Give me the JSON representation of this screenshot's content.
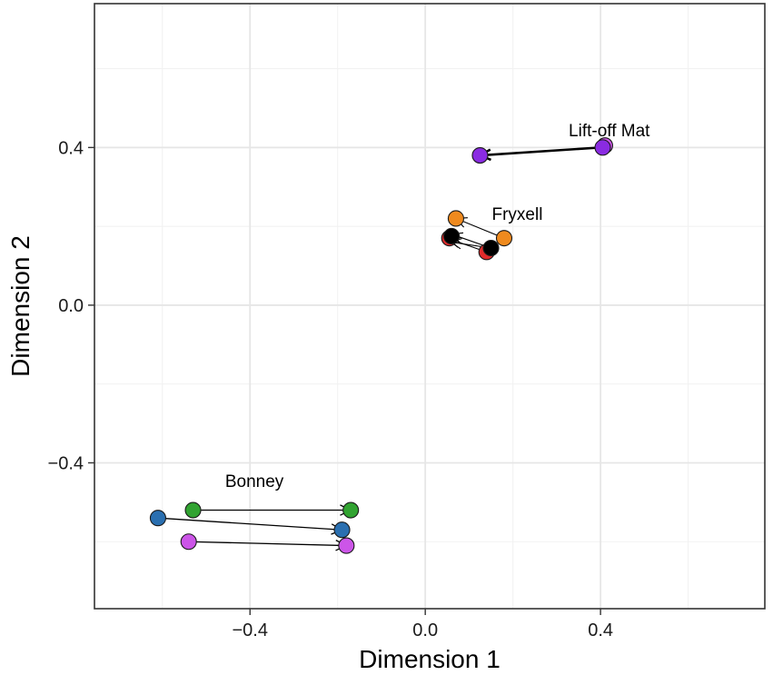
{
  "chart_data": {
    "type": "scatter",
    "title": "",
    "xlabel": "Dimension 1",
    "ylabel": "Dimension 2",
    "xlim": [
      -0.755,
      0.775
    ],
    "ylim": [
      -0.77,
      0.765
    ],
    "xticks": [
      -0.4,
      0.0,
      0.4
    ],
    "yticks": [
      -0.4,
      0.0,
      0.4
    ],
    "xtick_labels": [
      "−0.4",
      "0.0",
      "0.4"
    ],
    "ytick_labels": [
      "−0.4",
      "0.0",
      "0.4"
    ],
    "minor_grid_x": [
      -0.6,
      -0.2,
      0.2,
      0.6
    ],
    "minor_grid_y": [
      -0.6,
      -0.2,
      0.2,
      0.6
    ],
    "grid": true,
    "legend": "none",
    "points": [
      {
        "x": -0.53,
        "y": -0.52,
        "color": "#31a331",
        "group": "Bonney"
      },
      {
        "x": -0.17,
        "y": -0.52,
        "color": "#31a331",
        "group": "Bonney"
      },
      {
        "x": -0.61,
        "y": -0.54,
        "color": "#2a6fb0",
        "group": "Bonney"
      },
      {
        "x": -0.19,
        "y": -0.57,
        "color": "#2a6fb0",
        "group": "Bonney"
      },
      {
        "x": -0.54,
        "y": -0.6,
        "color": "#cc55e8",
        "group": "Bonney"
      },
      {
        "x": -0.18,
        "y": -0.61,
        "color": "#cc55e8",
        "group": "Bonney"
      },
      {
        "x": 0.07,
        "y": 0.22,
        "color": "#ef8a1e",
        "group": "Fryxell"
      },
      {
        "x": 0.18,
        "y": 0.17,
        "color": "#ef8a1e",
        "group": "Fryxell"
      },
      {
        "x": 0.14,
        "y": 0.135,
        "color": "#e02b2b",
        "group": "Fryxell"
      },
      {
        "x": 0.055,
        "y": 0.17,
        "color": "#e02b2b",
        "group": "Fryxell"
      },
      {
        "x": 0.15,
        "y": 0.145,
        "color": "#000000",
        "group": "Fryxell"
      },
      {
        "x": 0.06,
        "y": 0.175,
        "color": "#000000",
        "group": "Fryxell"
      },
      {
        "x": 0.41,
        "y": 0.405,
        "color": "#cc55e8",
        "group": "Lift-off Mat"
      },
      {
        "x": 0.405,
        "y": 0.4,
        "color": "#8a2be2",
        "group": "Lift-off Mat"
      },
      {
        "x": 0.125,
        "y": 0.38,
        "color": "#8a2be2",
        "group": "Lift-off Mat"
      }
    ],
    "arrows": [
      {
        "from": [
          -0.53,
          -0.52
        ],
        "to": [
          -0.17,
          -0.52
        ],
        "width": 1.3
      },
      {
        "from": [
          -0.61,
          -0.54
        ],
        "to": [
          -0.19,
          -0.57
        ],
        "width": 1.3
      },
      {
        "from": [
          -0.54,
          -0.6
        ],
        "to": [
          -0.18,
          -0.61
        ],
        "width": 1.3
      },
      {
        "from": [
          0.4,
          0.4
        ],
        "to": [
          0.125,
          0.38
        ],
        "width": 2.6
      },
      {
        "from": [
          0.18,
          0.17
        ],
        "to": [
          0.07,
          0.22
        ],
        "width": 1.1
      },
      {
        "from": [
          0.15,
          0.145
        ],
        "to": [
          0.06,
          0.18
        ],
        "width": 1.1
      },
      {
        "from": [
          0.14,
          0.135
        ],
        "to": [
          0.055,
          0.168
        ],
        "width": 1.1
      },
      {
        "from": [
          0.15,
          0.145
        ],
        "to": [
          0.058,
          0.16
        ],
        "width": 1.1
      }
    ],
    "annotations": [
      {
        "text": "Lift-off Mat",
        "x": 0.42,
        "y": 0.445
      },
      {
        "text": "Fryxell",
        "x": 0.21,
        "y": 0.233
      },
      {
        "text": "Bonney",
        "x": -0.39,
        "y": -0.445
      }
    ]
  }
}
